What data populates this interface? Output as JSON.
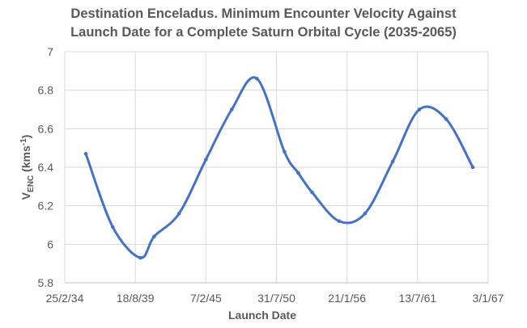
{
  "chart_data": {
    "type": "line",
    "title_line1": "Destination Enceladus. Minimum Encounter Velocity Against",
    "title_line2": "Launch Date for a Complete Saturn Orbital Cycle (2035-2065)",
    "xlabel": "Launch Date",
    "ylabel_main": "V",
    "ylabel_sub": "ENC",
    "ylabel_unit": " (kms",
    "ylabel_sup": "-1",
    "ylabel_close": ")",
    "xlim": [
      "2034-02-25",
      "2067-01-03"
    ],
    "ylim": [
      5.8,
      7
    ],
    "x_ticks": [
      "25/2/34",
      "18/8/39",
      "7/2/45",
      "31/7/50",
      "21/1/56",
      "13/7/61",
      "3/1/67"
    ],
    "x_tick_dates": [
      "2034-02-25",
      "2039-08-18",
      "2045-02-07",
      "2050-07-31",
      "2056-01-21",
      "2061-07-13",
      "2067-01-03"
    ],
    "y_ticks": [
      "5.8",
      "6",
      "6.2",
      "6.4",
      "6.6",
      "6.8",
      "7"
    ],
    "grid": true,
    "smooth": true,
    "line_color": "#4472c4",
    "series": [
      {
        "x": [
          "2035-10-15",
          "2037-11-15",
          "2040-01-05",
          "2041-02-01",
          "2043-01-10",
          "2045-02-07",
          "2047-02-10",
          "2049-01-25",
          "2051-03-15",
          "2052-04-10",
          "2053-05-05",
          "2055-06-10",
          "2057-06-15",
          "2059-08-10",
          "2061-09-01",
          "2063-10-01",
          "2065-10-25"
        ],
        "y": [
          6.47,
          6.09,
          5.93,
          6.04,
          6.16,
          6.44,
          6.7,
          6.86,
          6.48,
          6.37,
          6.27,
          6.12,
          6.16,
          6.43,
          6.7,
          6.65,
          6.4
        ]
      }
    ]
  }
}
